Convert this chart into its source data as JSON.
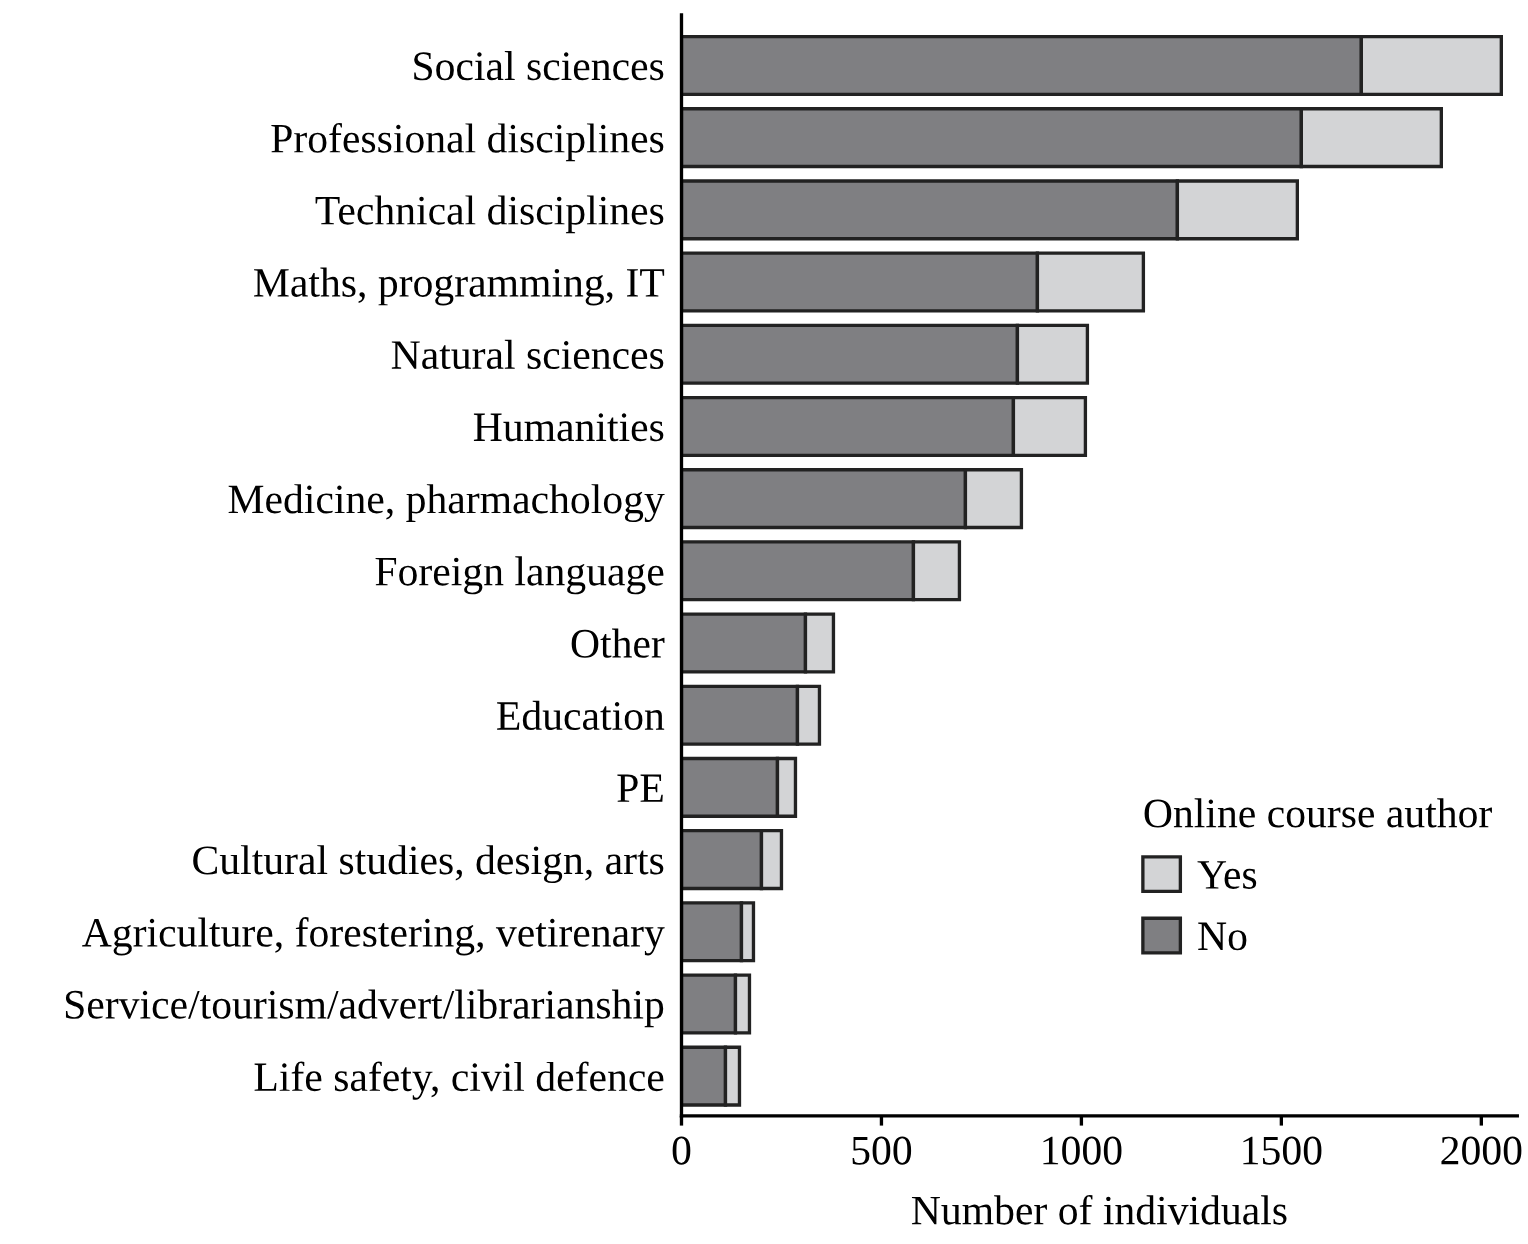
{
  "chart_data": {
    "type": "bar",
    "orientation": "horizontal",
    "stacked": true,
    "xlabel": "Number of individuals",
    "legend_title": "Online course author",
    "legend": "bottom right",
    "grid": false,
    "categories": [
      "Social sciences",
      "Professional disciplines",
      "Technical disciplines",
      "Maths, programming, IT",
      "Natural sciences",
      "Humanities",
      "Medicine, pharmachology",
      "Foreign language",
      "Other",
      "Education",
      "PE",
      "Cultural studies, design, arts",
      "Agriculture, forestering, vetirenary",
      "Service/tourism/advert/librarianship",
      "Life safety, civil defence"
    ],
    "series": [
      {
        "name": "No",
        "color": "#7f7f82",
        "values": [
          1700,
          1550,
          1240,
          890,
          840,
          830,
          710,
          580,
          310,
          290,
          240,
          200,
          150,
          135,
          110
        ]
      },
      {
        "name": "Yes",
        "color": "#d3d4d6",
        "values": [
          350,
          350,
          300,
          265,
          175,
          180,
          140,
          115,
          70,
          55,
          45,
          50,
          30,
          35,
          35
        ]
      }
    ],
    "xlim": [
      0,
      2090
    ],
    "xticks": [
      0,
      500,
      1000,
      1500,
      2000
    ]
  }
}
